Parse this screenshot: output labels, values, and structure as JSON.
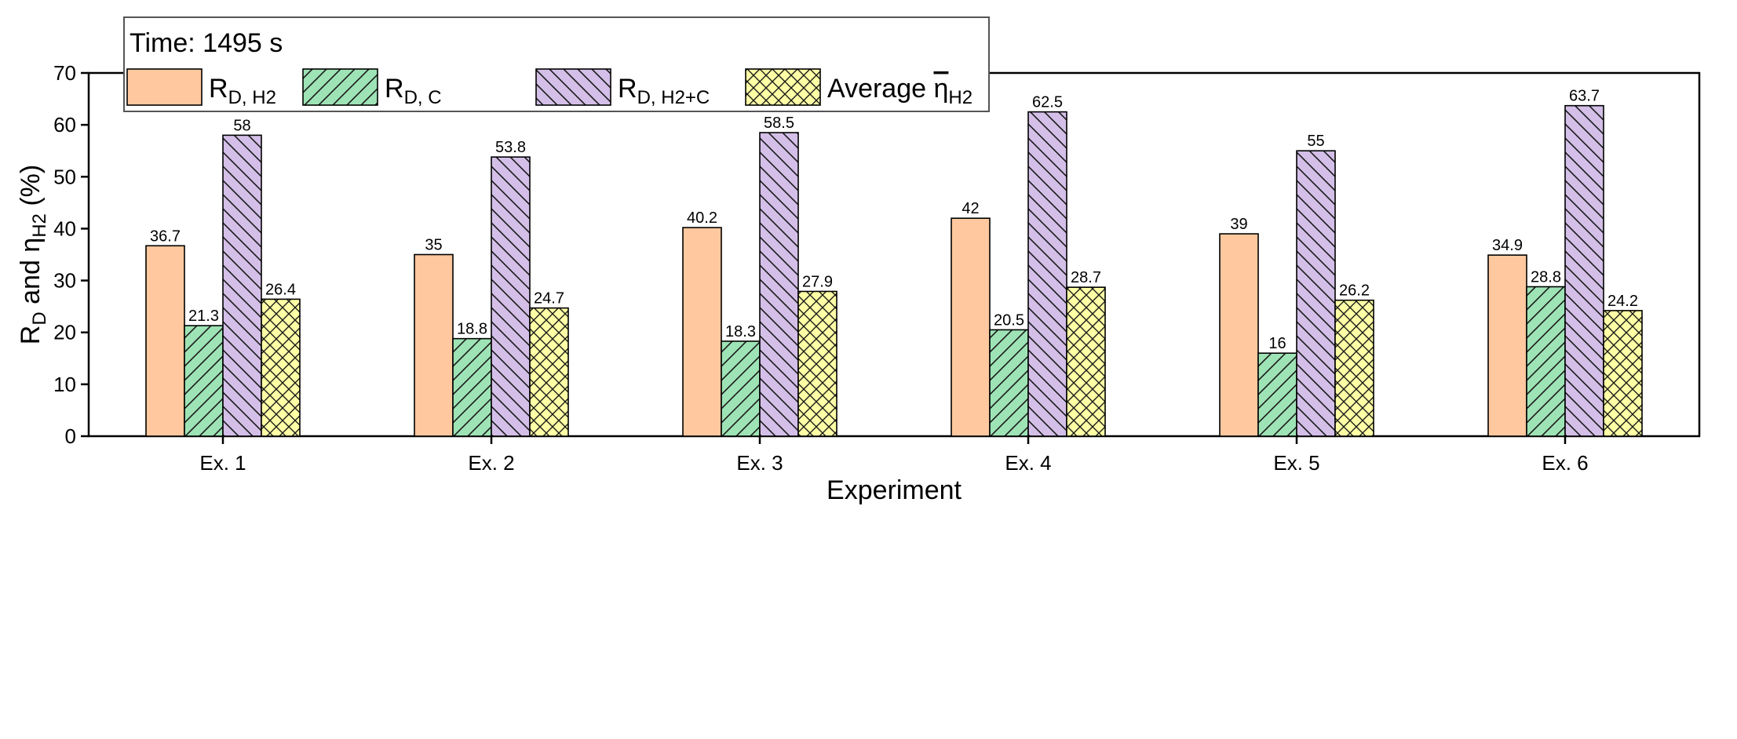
{
  "chart_data": {
    "type": "bar",
    "categories": [
      "Ex. 1",
      "Ex. 2",
      "Ex. 3",
      "Ex. 4",
      "Ex. 5",
      "Ex. 6"
    ],
    "series": [
      {
        "name": "R_D, H2",
        "label_main": "R",
        "label_sub": "D,  H2",
        "color": "#FFC89E",
        "pattern": "none",
        "values": [
          36.7,
          35,
          40.2,
          42,
          39,
          34.9
        ],
        "labels": [
          "36.7",
          "35",
          "40.2",
          "42",
          "39",
          "34.9"
        ]
      },
      {
        "name": "R_D, C",
        "label_main": "R",
        "label_sub": "D, C",
        "color": "#9EE3B5",
        "pattern": "diag-right",
        "values": [
          21.3,
          18.8,
          18.3,
          20.5,
          16,
          28.8
        ],
        "labels": [
          "21.3",
          "18.8",
          "18.3",
          "20.5",
          "16",
          "28.8"
        ]
      },
      {
        "name": "R_D, H2+C",
        "label_main": "R",
        "label_sub": "D, H2+C",
        "color": "#D4BFE8",
        "pattern": "diag-left",
        "values": [
          58,
          53.8,
          58.5,
          62.5,
          55,
          63.7
        ],
        "labels": [
          "58",
          "53.8",
          "58.5",
          "62.5",
          "55",
          "63.7"
        ]
      },
      {
        "name": "Average η_H2",
        "label_main": "Average ",
        "label_sym": "η",
        "label_sub": "H2",
        "color": "#FFFFA6",
        "pattern": "crosshatch",
        "values": [
          26.4,
          24.7,
          27.9,
          28.7,
          26.2,
          24.2
        ],
        "labels": [
          "26.4",
          "24.7",
          "27.9",
          "28.7",
          "26.2",
          "24.2"
        ]
      }
    ],
    "ylim": [
      0,
      70
    ],
    "yticks": [
      0,
      10,
      20,
      30,
      40,
      50,
      60,
      70
    ],
    "xlabel": "Experiment",
    "ylabel": {
      "main": "R",
      "sub1": "D",
      "mid": " and η",
      "sub2": "H2",
      "end": " (%)"
    },
    "legend_title": "Time: 1495 s",
    "legend_position": "top-left"
  }
}
